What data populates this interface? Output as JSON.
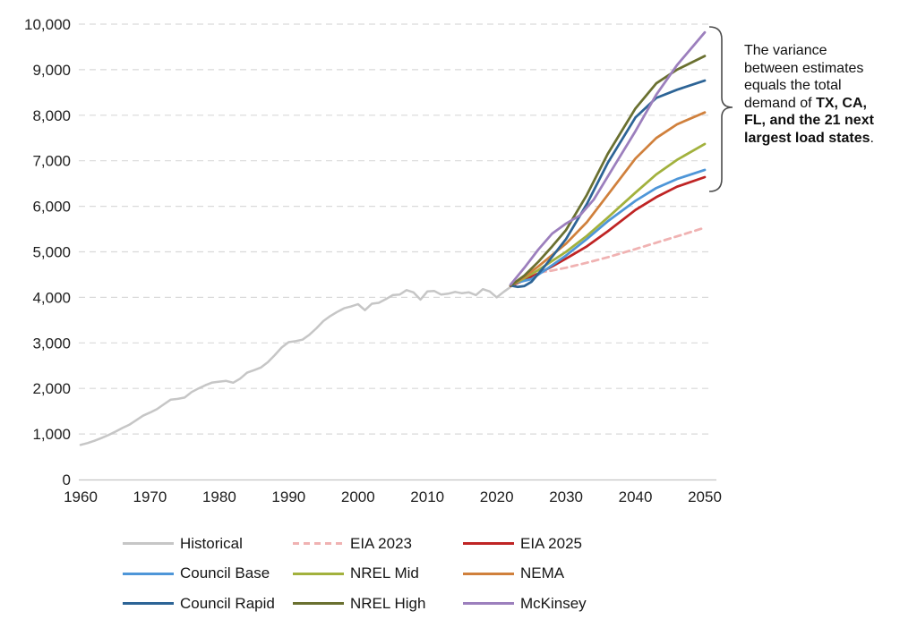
{
  "chart_data": {
    "type": "line",
    "title": "",
    "xlabel": "",
    "ylabel": "",
    "xlim": [
      1960,
      2050
    ],
    "ylim": [
      0,
      10000
    ],
    "grid": "horizontal-dashed",
    "legend_position": "bottom",
    "x_ticks": [
      1960,
      1970,
      1980,
      1990,
      2000,
      2010,
      2020,
      2030,
      2040,
      2050
    ],
    "y_ticks": [
      {
        "value": 0,
        "label": "0"
      },
      {
        "value": 1000,
        "label": "1,000"
      },
      {
        "value": 2000,
        "label": "2,000"
      },
      {
        "value": 3000,
        "label": "3,000"
      },
      {
        "value": 4000,
        "label": "4,000"
      },
      {
        "value": 5000,
        "label": "5,000"
      },
      {
        "value": 6000,
        "label": "6,000"
      },
      {
        "value": 7000,
        "label": "7,000"
      },
      {
        "value": 8000,
        "label": "8,000"
      },
      {
        "value": 9000,
        "label": "9,000"
      },
      {
        "value": 10000,
        "label": "10,000"
      }
    ],
    "series": [
      {
        "name": "Historical",
        "color": "#c6c6c6",
        "dash": "none",
        "width": 2.5,
        "points": [
          [
            1960,
            760
          ],
          [
            1961,
            800
          ],
          [
            1962,
            850
          ],
          [
            1963,
            910
          ],
          [
            1964,
            975
          ],
          [
            1965,
            1050
          ],
          [
            1966,
            1130
          ],
          [
            1967,
            1200
          ],
          [
            1968,
            1300
          ],
          [
            1969,
            1400
          ],
          [
            1970,
            1470
          ],
          [
            1971,
            1545
          ],
          [
            1972,
            1650
          ],
          [
            1973,
            1755
          ],
          [
            1974,
            1770
          ],
          [
            1975,
            1800
          ],
          [
            1976,
            1920
          ],
          [
            1977,
            2000
          ],
          [
            1978,
            2070
          ],
          [
            1979,
            2130
          ],
          [
            1980,
            2150
          ],
          [
            1981,
            2165
          ],
          [
            1982,
            2125
          ],
          [
            1983,
            2215
          ],
          [
            1984,
            2345
          ],
          [
            1985,
            2400
          ],
          [
            1986,
            2460
          ],
          [
            1987,
            2575
          ],
          [
            1988,
            2730
          ],
          [
            1989,
            2900
          ],
          [
            1990,
            3015
          ],
          [
            1991,
            3040
          ],
          [
            1992,
            3070
          ],
          [
            1993,
            3180
          ],
          [
            1994,
            3320
          ],
          [
            1995,
            3480
          ],
          [
            1996,
            3590
          ],
          [
            1997,
            3680
          ],
          [
            1998,
            3760
          ],
          [
            1999,
            3800
          ],
          [
            2000,
            3850
          ],
          [
            2001,
            3720
          ],
          [
            2002,
            3860
          ],
          [
            2003,
            3880
          ],
          [
            2004,
            3960
          ],
          [
            2005,
            4050
          ],
          [
            2006,
            4060
          ],
          [
            2007,
            4160
          ],
          [
            2008,
            4110
          ],
          [
            2009,
            3950
          ],
          [
            2010,
            4130
          ],
          [
            2011,
            4140
          ],
          [
            2012,
            4060
          ],
          [
            2013,
            4080
          ],
          [
            2014,
            4120
          ],
          [
            2015,
            4090
          ],
          [
            2016,
            4110
          ],
          [
            2017,
            4050
          ],
          [
            2018,
            4180
          ],
          [
            2019,
            4130
          ],
          [
            2020,
            4000
          ],
          [
            2021,
            4120
          ],
          [
            2022,
            4230
          ]
        ]
      },
      {
        "name": "EIA 2023",
        "color": "#f0b2b2",
        "dash": "7 5",
        "width": 2.75,
        "points": [
          [
            2022,
            4260
          ],
          [
            2024,
            4450
          ],
          [
            2026,
            4540
          ],
          [
            2028,
            4590
          ],
          [
            2030,
            4650
          ],
          [
            2033,
            4760
          ],
          [
            2036,
            4880
          ],
          [
            2040,
            5060
          ],
          [
            2043,
            5200
          ],
          [
            2046,
            5340
          ],
          [
            2050,
            5530
          ]
        ]
      },
      {
        "name": "EIA 2025",
        "color": "#bf2424",
        "dash": "none",
        "width": 2.75,
        "points": [
          [
            2022,
            4250
          ],
          [
            2024,
            4380
          ],
          [
            2026,
            4520
          ],
          [
            2028,
            4680
          ],
          [
            2030,
            4850
          ],
          [
            2033,
            5120
          ],
          [
            2036,
            5450
          ],
          [
            2040,
            5920
          ],
          [
            2043,
            6200
          ],
          [
            2046,
            6430
          ],
          [
            2050,
            6640
          ]
        ]
      },
      {
        "name": "Council Base",
        "color": "#4e96d8",
        "dash": "none",
        "width": 2.75,
        "points": [
          [
            2022,
            4270
          ],
          [
            2023,
            4330
          ],
          [
            2025,
            4400
          ],
          [
            2027,
            4600
          ],
          [
            2030,
            4920
          ],
          [
            2033,
            5280
          ],
          [
            2036,
            5670
          ],
          [
            2040,
            6120
          ],
          [
            2043,
            6400
          ],
          [
            2046,
            6600
          ],
          [
            2050,
            6800
          ]
        ]
      },
      {
        "name": "NREL Mid",
        "color": "#a2b13d",
        "dash": "none",
        "width": 2.75,
        "points": [
          [
            2022,
            4260
          ],
          [
            2024,
            4420
          ],
          [
            2026,
            4600
          ],
          [
            2028,
            4800
          ],
          [
            2030,
            5000
          ],
          [
            2033,
            5350
          ],
          [
            2036,
            5750
          ],
          [
            2040,
            6300
          ],
          [
            2043,
            6700
          ],
          [
            2046,
            7020
          ],
          [
            2050,
            7370
          ]
        ]
      },
      {
        "name": "NEMA",
        "color": "#d0803c",
        "dash": "none",
        "width": 2.75,
        "points": [
          [
            2022,
            4260
          ],
          [
            2024,
            4450
          ],
          [
            2026,
            4680
          ],
          [
            2028,
            4930
          ],
          [
            2030,
            5180
          ],
          [
            2033,
            5650
          ],
          [
            2036,
            6250
          ],
          [
            2040,
            7050
          ],
          [
            2043,
            7500
          ],
          [
            2046,
            7800
          ],
          [
            2050,
            8060
          ]
        ]
      },
      {
        "name": "Council Rapid",
        "color": "#2d6496",
        "dash": "none",
        "width": 2.75,
        "points": [
          [
            2022,
            4260
          ],
          [
            2023,
            4230
          ],
          [
            2024,
            4250
          ],
          [
            2025,
            4340
          ],
          [
            2027,
            4700
          ],
          [
            2030,
            5280
          ],
          [
            2033,
            6050
          ],
          [
            2036,
            6950
          ],
          [
            2040,
            7950
          ],
          [
            2043,
            8380
          ],
          [
            2046,
            8560
          ],
          [
            2050,
            8760
          ]
        ]
      },
      {
        "name": "NREL High",
        "color": "#6a7030",
        "dash": "none",
        "width": 2.75,
        "points": [
          [
            2022,
            4260
          ],
          [
            2024,
            4480
          ],
          [
            2026,
            4780
          ],
          [
            2028,
            5120
          ],
          [
            2030,
            5480
          ],
          [
            2033,
            6250
          ],
          [
            2036,
            7150
          ],
          [
            2040,
            8150
          ],
          [
            2043,
            8700
          ],
          [
            2046,
            9000
          ],
          [
            2050,
            9300
          ]
        ]
      },
      {
        "name": "McKinsey",
        "color": "#9c7fbd",
        "dash": "none",
        "width": 2.75,
        "points": [
          [
            2022,
            4280
          ],
          [
            2024,
            4650
          ],
          [
            2026,
            5050
          ],
          [
            2028,
            5400
          ],
          [
            2030,
            5620
          ],
          [
            2032,
            5800
          ],
          [
            2034,
            6150
          ],
          [
            2037,
            6900
          ],
          [
            2040,
            7650
          ],
          [
            2043,
            8450
          ],
          [
            2046,
            9100
          ],
          [
            2050,
            9820
          ]
        ]
      }
    ]
  },
  "legend": {
    "items": [
      {
        "label": "Historical",
        "color": "#c6c6c6",
        "dashed": false
      },
      {
        "label": "EIA 2023",
        "color": "#f0b2b2",
        "dashed": true
      },
      {
        "label": "EIA 2025",
        "color": "#bf2424",
        "dashed": false
      },
      {
        "label": "Council Base",
        "color": "#4e96d8",
        "dashed": false
      },
      {
        "label": "NREL Mid",
        "color": "#a2b13d",
        "dashed": false
      },
      {
        "label": "NEMA",
        "color": "#d0803c",
        "dashed": false
      },
      {
        "label": "Council Rapid",
        "color": "#2d6496",
        "dashed": false
      },
      {
        "label": "NREL High",
        "color": "#6a7030",
        "dashed": false
      },
      {
        "label": "McKinsey",
        "color": "#9c7fbd",
        "dashed": false
      }
    ],
    "columns": 3
  },
  "annotation": {
    "lines": [
      [
        {
          "text": "The variance",
          "bold": false
        }
      ],
      [
        {
          "text": "between estimates",
          "bold": false
        }
      ],
      [
        {
          "text": "equals the total",
          "bold": false
        }
      ],
      [
        {
          "text": "demand of ",
          "bold": false
        },
        {
          "text": "TX, CA,",
          "bold": true
        }
      ],
      [
        {
          "text": "FL, and the 21 next",
          "bold": true
        }
      ],
      [
        {
          "text": "largest load states",
          "bold": true
        },
        {
          "text": ".",
          "bold": false
        }
      ]
    ]
  }
}
